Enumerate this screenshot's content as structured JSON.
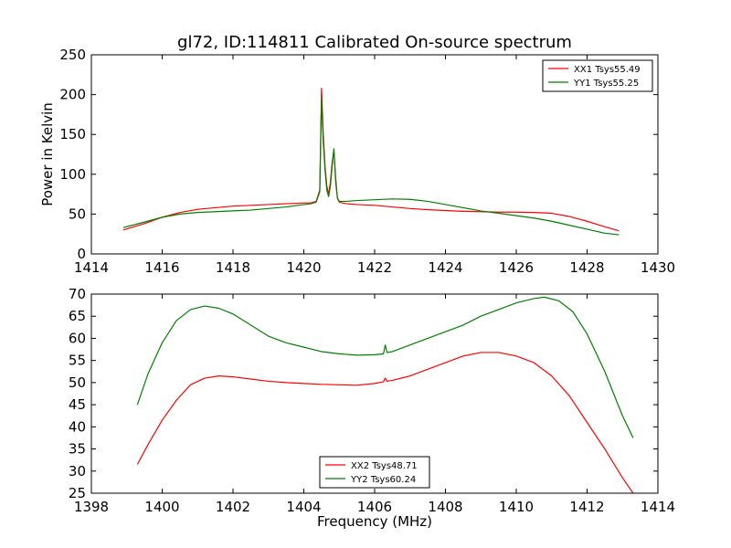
{
  "chart_data": [
    {
      "type": "line",
      "title": "gl72, ID:114811 Calibrated On-source spectrum",
      "xlabel": "",
      "ylabel": "Power in Kelvin",
      "xlim": [
        1414,
        1430
      ],
      "ylim": [
        0,
        250
      ],
      "xticks": [
        "1414",
        "1416",
        "1418",
        "1420",
        "1422",
        "1424",
        "1426",
        "1428",
        "1430"
      ],
      "yticks": [
        "0",
        "50",
        "100",
        "150",
        "200",
        "250"
      ],
      "grid": false,
      "legend_position": "top-right",
      "series": [
        {
          "name": "XX1 Tsys55.49",
          "color": "#ff0000",
          "x": [
            1414.9,
            1415.5,
            1416.0,
            1416.5,
            1417.0,
            1417.5,
            1418.0,
            1418.5,
            1419.0,
            1419.5,
            1420.0,
            1420.2,
            1420.35,
            1420.45,
            1420.5,
            1420.55,
            1420.6,
            1420.65,
            1420.7,
            1420.75,
            1420.8,
            1420.85,
            1420.9,
            1420.95,
            1421.0,
            1421.1,
            1421.2,
            1421.5,
            1422.0,
            1422.5,
            1423.0,
            1423.5,
            1424.0,
            1424.5,
            1425.0,
            1425.5,
            1426.0,
            1426.5,
            1427.0,
            1427.5,
            1428.0,
            1428.5,
            1428.9
          ],
          "y": [
            30,
            38,
            46,
            52,
            56,
            58,
            60,
            61,
            62,
            63,
            64,
            64,
            66,
            80,
            208,
            150,
            110,
            85,
            75,
            90,
            115,
            130,
            95,
            70,
            65,
            64,
            63,
            62,
            61,
            59,
            57,
            55.5,
            54.5,
            53.5,
            53,
            52.5,
            52.5,
            52,
            51,
            47,
            41,
            34,
            29
          ]
        },
        {
          "name": "YY1 Tsys55.25",
          "color": "#008000",
          "x": [
            1414.9,
            1415.5,
            1416.0,
            1416.5,
            1417.0,
            1417.5,
            1418.0,
            1418.5,
            1419.0,
            1419.5,
            1420.0,
            1420.2,
            1420.35,
            1420.45,
            1420.5,
            1420.55,
            1420.6,
            1420.65,
            1420.7,
            1420.75,
            1420.8,
            1420.85,
            1420.9,
            1420.95,
            1421.0,
            1421.1,
            1421.2,
            1421.5,
            1422.0,
            1422.5,
            1423.0,
            1423.5,
            1424.0,
            1424.5,
            1425.0,
            1425.5,
            1426.0,
            1426.5,
            1427.0,
            1427.5,
            1428.0,
            1428.5,
            1428.9
          ],
          "y": [
            33,
            40,
            46,
            50,
            52,
            53,
            54,
            55,
            57,
            59,
            62,
            63,
            65,
            78,
            195,
            140,
            105,
            80,
            72,
            85,
            110,
            132,
            90,
            70,
            66,
            66,
            66,
            67,
            68,
            69,
            68.5,
            66,
            62,
            58,
            54,
            51,
            48,
            45,
            41,
            36,
            31,
            26,
            24
          ]
        }
      ]
    },
    {
      "type": "line",
      "title": "",
      "xlabel": "Frequency (MHz)",
      "ylabel": "",
      "xlim": [
        1398,
        1414
      ],
      "ylim": [
        25,
        70
      ],
      "xticks": [
        "1398",
        "1400",
        "1402",
        "1404",
        "1406",
        "1408",
        "1410",
        "1412",
        "1414"
      ],
      "yticks": [
        "25",
        "30",
        "35",
        "40",
        "45",
        "50",
        "55",
        "60",
        "65",
        "70"
      ],
      "grid": false,
      "legend_position": "bottom-center",
      "series": [
        {
          "name": "XX2 Tsys48.71",
          "color": "#ff0000",
          "x": [
            1399.3,
            1399.6,
            1400.0,
            1400.4,
            1400.8,
            1401.2,
            1401.6,
            1402.0,
            1402.5,
            1403.0,
            1403.5,
            1404.0,
            1404.5,
            1405.0,
            1405.5,
            1406.0,
            1406.25,
            1406.3,
            1406.35,
            1406.5,
            1407.0,
            1407.5,
            1408.0,
            1408.5,
            1409.0,
            1409.5,
            1410.0,
            1410.5,
            1411.0,
            1411.5,
            1412.0,
            1412.5,
            1413.0,
            1413.3
          ],
          "y": [
            31.5,
            36,
            41.5,
            46,
            49.5,
            51,
            51.5,
            51.3,
            50.8,
            50.3,
            50,
            49.8,
            49.6,
            49.5,
            49.4,
            49.8,
            50.2,
            51,
            50.3,
            50.5,
            51.5,
            53,
            54.5,
            56,
            56.8,
            56.8,
            56,
            54.5,
            51.5,
            47,
            41,
            35,
            28.5,
            25
          ]
        },
        {
          "name": "YY2 Tsys60.24",
          "color": "#008000",
          "x": [
            1399.3,
            1399.6,
            1400.0,
            1400.4,
            1400.8,
            1401.2,
            1401.6,
            1402.0,
            1402.5,
            1403.0,
            1403.5,
            1404.0,
            1404.5,
            1405.0,
            1405.5,
            1406.0,
            1406.25,
            1406.3,
            1406.35,
            1406.5,
            1407.0,
            1407.5,
            1408.0,
            1408.5,
            1409.0,
            1409.5,
            1410.0,
            1410.5,
            1410.8,
            1411.2,
            1411.6,
            1412.0,
            1412.5,
            1413.0,
            1413.3
          ],
          "y": [
            45,
            52,
            59,
            64,
            66.5,
            67.3,
            66.8,
            65.5,
            63,
            60.5,
            59,
            58,
            57,
            56.5,
            56.2,
            56.3,
            56.5,
            58.5,
            56.8,
            57,
            58.5,
            60,
            61.5,
            63,
            65,
            66.5,
            68,
            69,
            69.3,
            68.5,
            66,
            61,
            52.5,
            42.5,
            37.5
          ]
        }
      ]
    }
  ]
}
